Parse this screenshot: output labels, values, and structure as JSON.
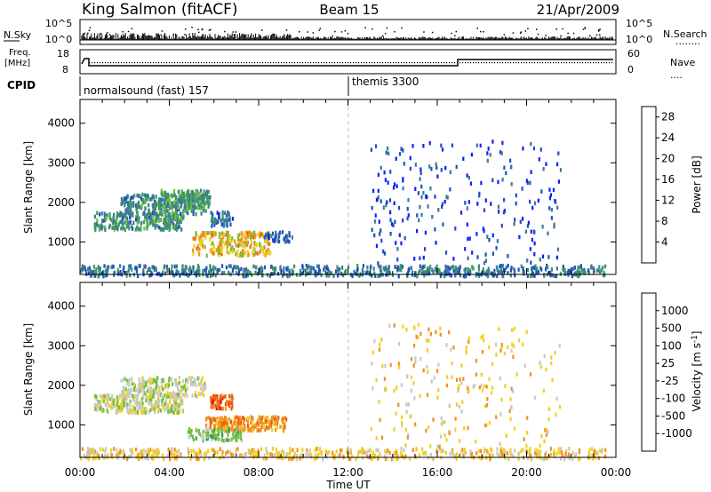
{
  "header": {
    "station": "King Salmon (fitACF)",
    "beam": "Beam 15",
    "date": "21/Apr/2009"
  },
  "noise_panel": {
    "left_label": "N.Sky",
    "right_label": "N.Search",
    "right_dots": "........",
    "ticks": [
      "10^5",
      "10^0"
    ]
  },
  "freq_panel": {
    "left_label_1": "Freq.",
    "left_label_2": "[MHz]",
    "left_ticks": [
      "18",
      "8"
    ],
    "right_label": "Nave",
    "right_dots": "....",
    "right_ticks": [
      "60",
      "0"
    ]
  },
  "cpid": {
    "label": "CPID",
    "segments": [
      {
        "name": "normalsound (fast) 157",
        "start_hour": 0
      },
      {
        "name": "themis 3300",
        "start_hour": 12
      }
    ]
  },
  "chart_data": [
    {
      "type": "heatmap",
      "panel": "power",
      "ylabel": "Slant Range [km]",
      "xlabel": "Time UT",
      "x_ticks": [
        "00:00",
        "04:00",
        "08:00",
        "12:00",
        "16:00",
        "20:00",
        "00:00"
      ],
      "x_range_hours": [
        0,
        24
      ],
      "y_ticks": [
        1000,
        2000,
        3000,
        4000
      ],
      "y_range_km": [
        180,
        4600
      ],
      "colorbar": {
        "label": "Power [dB]",
        "ticks": [
          "4",
          "8",
          "12",
          "16",
          "20",
          "24",
          "28"
        ],
        "range": [
          0,
          30
        ],
        "colors": [
          "#1020ff",
          "#2050c0",
          "#3a7a9a",
          "#3c9a5a",
          "#70c040",
          "#f0d020",
          "#f09020",
          "#f06010",
          "#e01010"
        ]
      },
      "echo_regions": [
        {
          "h0": 0.6,
          "h1": 4.6,
          "r0": 1350,
          "r1": 1800,
          "level": 10,
          "n": 260
        },
        {
          "h0": 1.8,
          "h1": 5.6,
          "r0": 1750,
          "r1": 2250,
          "level": 9,
          "n": 240
        },
        {
          "h0": 3.5,
          "h1": 5.8,
          "r0": 1900,
          "r1": 2350,
          "level": 11,
          "n": 160
        },
        {
          "h0": 5.8,
          "h1": 6.8,
          "r0": 1450,
          "r1": 1800,
          "level": 6,
          "n": 50
        },
        {
          "h0": 5.0,
          "h1": 8.5,
          "r0": 700,
          "r1": 1300,
          "level": 20,
          "n": 240
        },
        {
          "h0": 8.2,
          "h1": 9.5,
          "r0": 1050,
          "r1": 1300,
          "level": 5,
          "n": 40
        },
        {
          "h0": 0.0,
          "h1": 23.5,
          "r0": 180,
          "r1": 450,
          "level": 7,
          "n": 620
        },
        {
          "h0": 13.0,
          "h1": 21.5,
          "r0": 500,
          "r1": 3600,
          "level": 3,
          "n": 240
        }
      ]
    },
    {
      "type": "heatmap",
      "panel": "velocity",
      "ylabel": "Slant Range [km]",
      "xlabel": "Time UT",
      "x_ticks": [
        "00:00",
        "04:00",
        "08:00",
        "12:00",
        "16:00",
        "20:00",
        "00:00"
      ],
      "x_range_hours": [
        0,
        24
      ],
      "y_ticks": [
        1000,
        2000,
        3000,
        4000
      ],
      "y_range_km": [
        180,
        4600
      ],
      "colorbar": {
        "label": "Velocity [m s^-1]",
        "ticks": [
          "1000",
          "500",
          "100",
          "25",
          "-25",
          "-100",
          "-500",
          "-1000"
        ],
        "colors": [
          "#1020ff",
          "#2050c0",
          "#3c9a5a",
          "#70c040",
          "#c8c8c8",
          "#f0d020",
          "#f09020",
          "#f06010",
          "#e01010"
        ]
      },
      "echo_regions": [
        {
          "h0": 0.6,
          "h1": 4.6,
          "r0": 1350,
          "r1": 1800,
          "velocity_class": 4,
          "n": 260
        },
        {
          "h0": 1.8,
          "h1": 5.6,
          "r0": 1750,
          "r1": 2250,
          "velocity_class": 4,
          "n": 220
        },
        {
          "h0": 5.8,
          "h1": 6.8,
          "r0": 1450,
          "r1": 1800,
          "velocity_class": 7,
          "n": 60
        },
        {
          "h0": 5.6,
          "h1": 9.2,
          "r0": 900,
          "r1": 1250,
          "velocity_class": 6,
          "n": 220
        },
        {
          "h0": 4.8,
          "h1": 7.2,
          "r0": 650,
          "r1": 950,
          "velocity_class": 3,
          "n": 90
        },
        {
          "h0": 0.0,
          "h1": 23.5,
          "r0": 180,
          "r1": 450,
          "velocity_class": 5,
          "n": 520
        },
        {
          "h0": 13.0,
          "h1": 21.5,
          "r0": 500,
          "r1": 3600,
          "velocity_class": 5,
          "n": 220
        }
      ]
    }
  ]
}
